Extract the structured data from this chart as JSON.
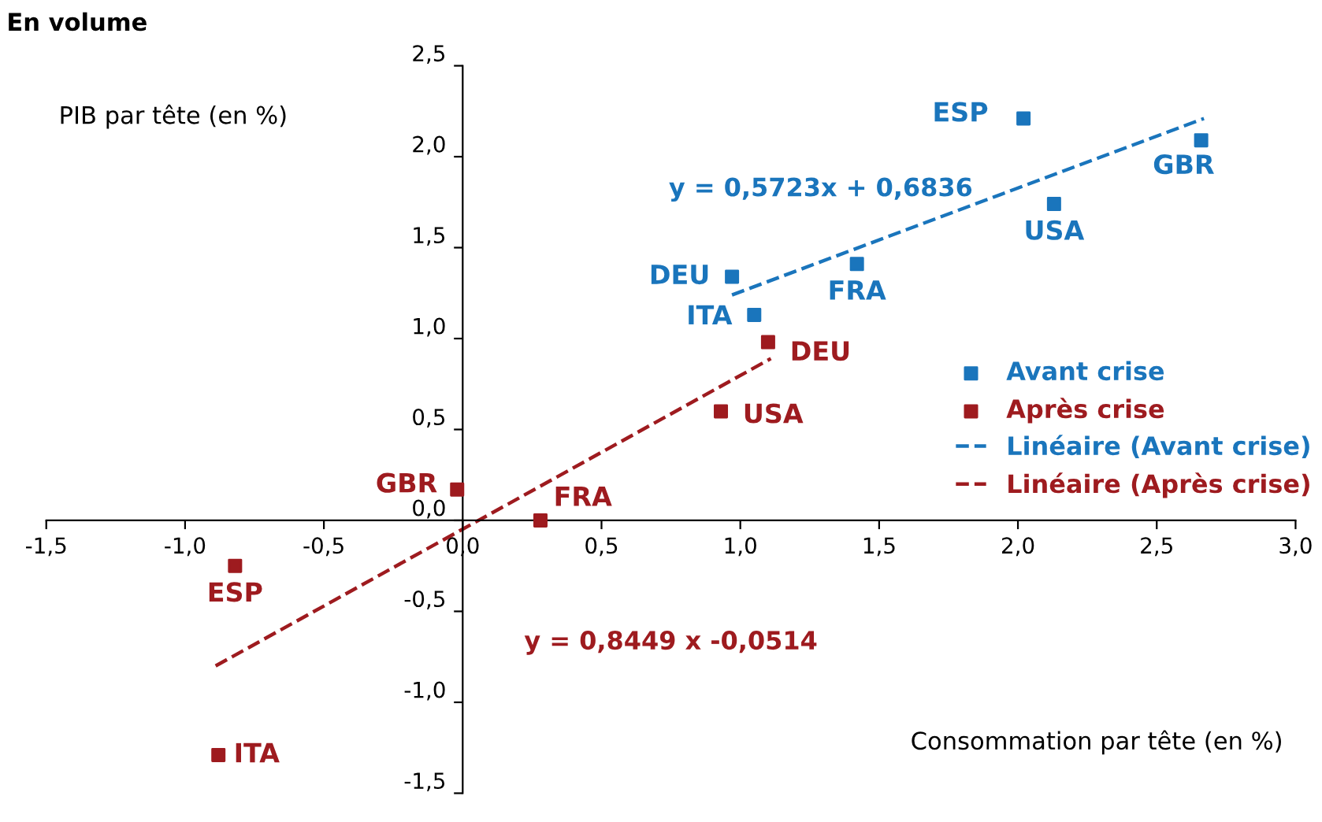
{
  "chart_data": {
    "type": "scatter",
    "subtitle": "En volume",
    "xlabel": "Consommation par tête (en %)",
    "ylabel": "PIB par tête (en %)",
    "xlim": [
      -1.5,
      3.0
    ],
    "ylim": [
      -1.5,
      2.5
    ],
    "xticks": [
      {
        "value": -1.5,
        "label": "-1,5"
      },
      {
        "value": -1.0,
        "label": "-1,0"
      },
      {
        "value": -0.5,
        "label": "-0,5"
      },
      {
        "value": 0.0,
        "label": "0,0"
      },
      {
        "value": 0.5,
        "label": "0,5"
      },
      {
        "value": 1.0,
        "label": "1,0"
      },
      {
        "value": 1.5,
        "label": "1,5"
      },
      {
        "value": 2.0,
        "label": "2,0"
      },
      {
        "value": 2.5,
        "label": "2,5"
      },
      {
        "value": 3.0,
        "label": "3,0"
      }
    ],
    "yticks": [
      {
        "value": -1.5,
        "label": "-1,5"
      },
      {
        "value": -1.0,
        "label": "-1,0"
      },
      {
        "value": -0.5,
        "label": "-0,5"
      },
      {
        "value": 0.0,
        "label": "0,0"
      },
      {
        "value": 0.5,
        "label": "0,5"
      },
      {
        "value": 1.0,
        "label": "1,0"
      },
      {
        "value": 1.5,
        "label": "1,5"
      },
      {
        "value": 2.0,
        "label": "2,0"
      },
      {
        "value": 2.5,
        "label": "2,5"
      }
    ],
    "grid": false,
    "legend": "right",
    "series": [
      {
        "name": "Avant crise",
        "marker": "square",
        "color": "#1a75bc",
        "x": [
          2.02,
          2.66,
          2.13,
          1.42,
          0.97,
          1.05
        ],
        "values": [
          2.21,
          2.09,
          1.74,
          1.41,
          1.34,
          1.13
        ]
      },
      {
        "name": "Après crise",
        "marker": "square",
        "color": "#9e1b1f",
        "x": [
          1.1,
          0.93,
          0.28,
          -0.02,
          -0.82,
          -0.88
        ],
        "values": [
          0.98,
          0.6,
          0.0,
          0.17,
          -0.25,
          -1.29
        ]
      },
      {
        "name": "Linéaire (Avant crise)",
        "type": "line",
        "line_style": "dashed",
        "color": "#1a75bc",
        "x": [
          0.97,
          2.67
        ],
        "values": [
          1.24,
          2.21
        ]
      },
      {
        "name": "Linéaire (Après crise)",
        "type": "line",
        "line_style": "dashed",
        "color": "#9e1b1f",
        "x": [
          -0.89,
          1.11
        ],
        "values": [
          -0.8,
          0.89
        ]
      }
    ],
    "annotations": [
      {
        "text": "ESP",
        "x": 2.02,
        "y": 2.21
      },
      {
        "text": "GBR",
        "x": 2.66,
        "y": 2.09
      },
      {
        "text": "USA",
        "x": 2.13,
        "y": 1.74
      },
      {
        "text": "FRA",
        "x": 1.42,
        "y": 1.41
      },
      {
        "text": "DEU",
        "x": 0.97,
        "y": 1.34
      },
      {
        "text": "ITA",
        "x": 1.05,
        "y": 1.13
      },
      {
        "text": "DEU",
        "x": 1.1,
        "y": 0.98
      },
      {
        "text": "USA",
        "x": 0.93,
        "y": 0.6
      },
      {
        "text": "FRA",
        "x": 0.28,
        "y": 0.0
      },
      {
        "text": "GBR",
        "x": -0.02,
        "y": 0.17
      },
      {
        "text": "ESP",
        "x": -0.82,
        "y": -0.25
      },
      {
        "text": "ITA",
        "x": -0.88,
        "y": -1.29
      },
      "y = 0,5723x + 0,6836",
      "y = 0,8449 x -0,0514"
    ]
  }
}
